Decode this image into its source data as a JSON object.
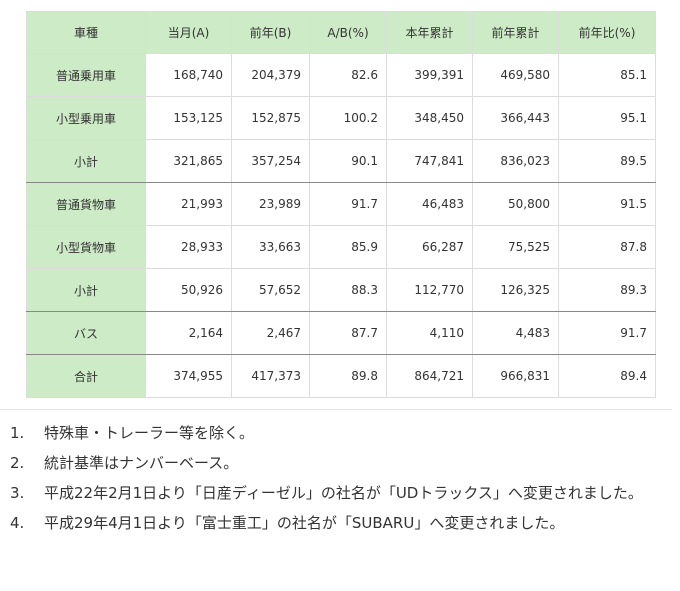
{
  "table": {
    "headers": [
      "車種",
      "当月(A)",
      "前年(B)",
      "A/B(%)",
      "本年累計",
      "前年累計",
      "前年比(%)"
    ],
    "rows": [
      {
        "type": "普通乗用車",
        "a": "168,740",
        "b": "204,379",
        "ab": "82.6",
        "ytd": "399,391",
        "prev_ytd": "469,580",
        "yoy": "85.1"
      },
      {
        "type": "小型乗用車",
        "a": "153,125",
        "b": "152,875",
        "ab": "100.2",
        "ytd": "348,450",
        "prev_ytd": "366,443",
        "yoy": "95.1"
      },
      {
        "type": "小計",
        "a": "321,865",
        "b": "357,254",
        "ab": "90.1",
        "ytd": "747,841",
        "prev_ytd": "836,023",
        "yoy": "89.5"
      },
      {
        "type": "普通貨物車",
        "a": "21,993",
        "b": "23,989",
        "ab": "91.7",
        "ytd": "46,483",
        "prev_ytd": "50,800",
        "yoy": "91.5"
      },
      {
        "type": "小型貨物車",
        "a": "28,933",
        "b": "33,663",
        "ab": "85.9",
        "ytd": "66,287",
        "prev_ytd": "75,525",
        "yoy": "87.8"
      },
      {
        "type": "小計",
        "a": "50,926",
        "b": "57,652",
        "ab": "88.3",
        "ytd": "112,770",
        "prev_ytd": "126,325",
        "yoy": "89.3"
      },
      {
        "type": "バス",
        "a": "2,164",
        "b": "2,467",
        "ab": "87.7",
        "ytd": "4,110",
        "prev_ytd": "4,483",
        "yoy": "91.7"
      },
      {
        "type": "合計",
        "a": "374,955",
        "b": "417,373",
        "ab": "89.8",
        "ytd": "864,721",
        "prev_ytd": "966,831",
        "yoy": "89.4"
      }
    ]
  },
  "notes": [
    {
      "num": "1.",
      "text": "特殊車・トレーラー等を除く。"
    },
    {
      "num": "2.",
      "text": "統計基準はナンバーベース。"
    },
    {
      "num": "3.",
      "text": "平成22年2月1日より「日産ディーゼル」の社名が「UDトラックス」へ変更されました。"
    },
    {
      "num": "4.",
      "text": "平成29年4月1日より「富士重工」の社名が「SUBARU」へ変更されました。"
    }
  ],
  "colors": {
    "header_bg": "#cdebc6",
    "border": "#dcdcdc",
    "group_border": "#888888"
  }
}
